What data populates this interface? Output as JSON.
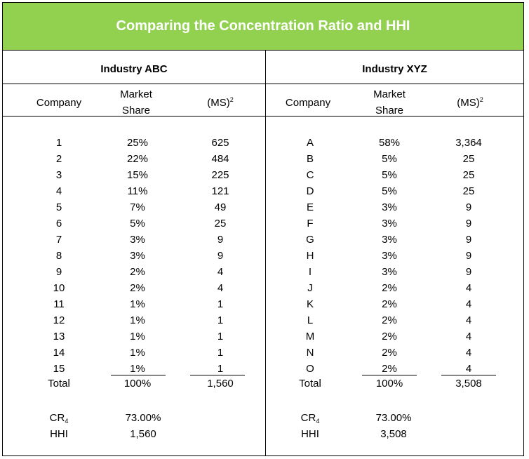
{
  "title": "Comparing the Concentration Ratio and HHI",
  "headers": {
    "company": "Company",
    "market_share_1": "Market",
    "market_share_2": "Share",
    "ms_sq": "(MS)",
    "ms_sq_sup": "2"
  },
  "industries": [
    {
      "name": "Industry ABC",
      "rows": [
        {
          "company": "1",
          "share": "25%",
          "sq": "625"
        },
        {
          "company": "2",
          "share": "22%",
          "sq": "484"
        },
        {
          "company": "3",
          "share": "15%",
          "sq": "225"
        },
        {
          "company": "4",
          "share": "11%",
          "sq": "121"
        },
        {
          "company": "5",
          "share": "7%",
          "sq": "49"
        },
        {
          "company": "6",
          "share": "5%",
          "sq": "25"
        },
        {
          "company": "7",
          "share": "3%",
          "sq": "9"
        },
        {
          "company": "8",
          "share": "3%",
          "sq": "9"
        },
        {
          "company": "9",
          "share": "2%",
          "sq": "4"
        },
        {
          "company": "10",
          "share": "2%",
          "sq": "4"
        },
        {
          "company": "11",
          "share": "1%",
          "sq": "1"
        },
        {
          "company": "12",
          "share": "1%",
          "sq": "1"
        },
        {
          "company": "13",
          "share": "1%",
          "sq": "1"
        },
        {
          "company": "14",
          "share": "1%",
          "sq": "1"
        },
        {
          "company": "15",
          "share": "1%",
          "sq": "1"
        }
      ],
      "total": {
        "label": "Total",
        "share": "100%",
        "sq": "1,560"
      },
      "cr4": {
        "label": "CR",
        "sub": "4",
        "value": "73.00%"
      },
      "hhi": {
        "label": "HHI",
        "value": "1,560"
      }
    },
    {
      "name": "Industry XYZ",
      "rows": [
        {
          "company": "A",
          "share": "58%",
          "sq": "3,364"
        },
        {
          "company": "B",
          "share": "5%",
          "sq": "25"
        },
        {
          "company": "C",
          "share": "5%",
          "sq": "25"
        },
        {
          "company": "D",
          "share": "5%",
          "sq": "25"
        },
        {
          "company": "E",
          "share": "3%",
          "sq": "9"
        },
        {
          "company": "F",
          "share": "3%",
          "sq": "9"
        },
        {
          "company": "G",
          "share": "3%",
          "sq": "9"
        },
        {
          "company": "H",
          "share": "3%",
          "sq": "9"
        },
        {
          "company": "I",
          "share": "3%",
          "sq": "9"
        },
        {
          "company": "J",
          "share": "2%",
          "sq": "4"
        },
        {
          "company": "K",
          "share": "2%",
          "sq": "4"
        },
        {
          "company": "L",
          "share": "2%",
          "sq": "4"
        },
        {
          "company": "M",
          "share": "2%",
          "sq": "4"
        },
        {
          "company": "N",
          "share": "2%",
          "sq": "4"
        },
        {
          "company": "O",
          "share": "2%",
          "sq": "4"
        }
      ],
      "total": {
        "label": "Total",
        "share": "100%",
        "sq": "3,508"
      },
      "cr4": {
        "label": "CR",
        "sub": "4",
        "value": "73.00%"
      },
      "hhi": {
        "label": "HHI",
        "value": "3,508"
      }
    }
  ]
}
